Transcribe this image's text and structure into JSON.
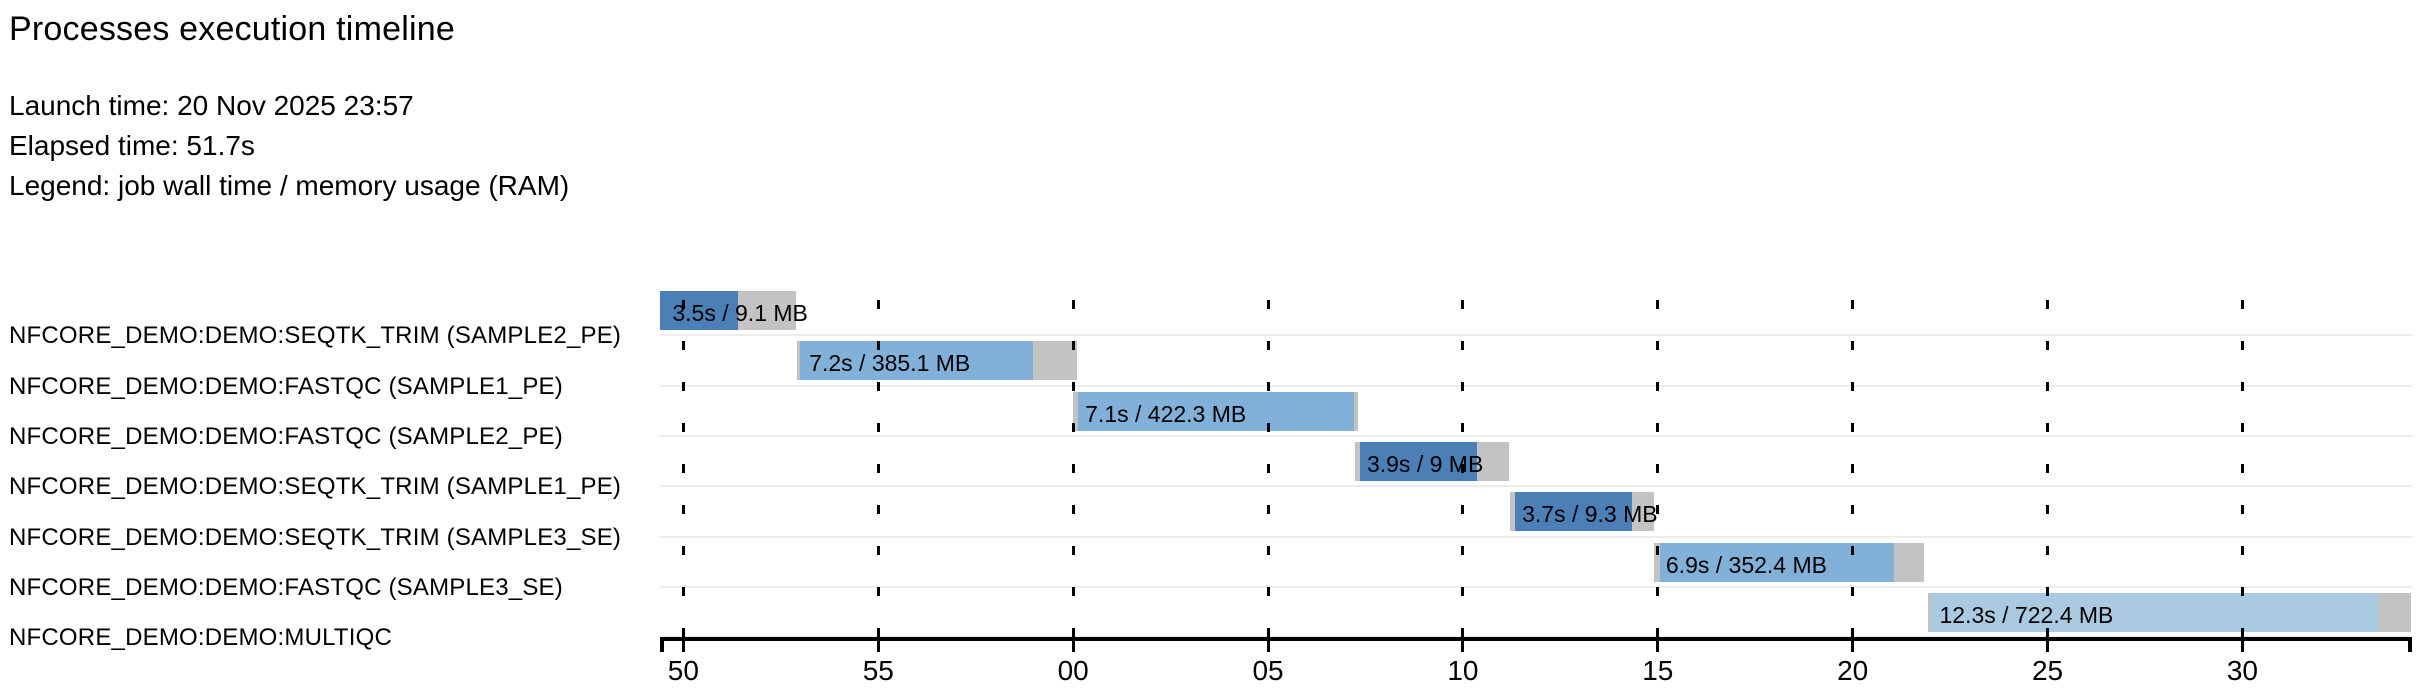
{
  "header": {
    "title": "Processes execution timeline",
    "launch_time": "Launch time: 20 Nov 2025 23:57",
    "elapsed_time": "Elapsed time: 51.7s",
    "legend": "Legend: job wall time / memory usage (RAM)"
  },
  "colors": {
    "seqtk_trim": "#4b7fb6",
    "fastqc": "#81b0d8",
    "multiqc": "#a9cae1",
    "overhead_gray": "#c3c3c3",
    "row_separator": "#ededed",
    "gridline": "#000000",
    "axis": "#000000",
    "text": "#000000"
  },
  "chart_data": {
    "type": "gantt-timeline",
    "title": "Processes execution timeline",
    "time_axis": {
      "unit": "seconds",
      "domain_s": [
        49.4,
        94.35
      ],
      "ticks": [
        {
          "t": 50,
          "label": "50"
        },
        {
          "t": 55,
          "label": "55"
        },
        {
          "t": 60,
          "label": "00"
        },
        {
          "t": 65,
          "label": "05"
        },
        {
          "t": 70,
          "label": "10"
        },
        {
          "t": 75,
          "label": "15"
        },
        {
          "t": 80,
          "label": "20"
        },
        {
          "t": 85,
          "label": "25"
        },
        {
          "t": 90,
          "label": "30"
        }
      ]
    },
    "tasks": [
      {
        "process": "NFCORE_DEMO:DEMO:SEQTK_TRIM (SAMPLE2_PE)",
        "bar_label": "3.5s / 9.1 MB",
        "wall_time_s": 3.5,
        "memory": "9.1 MB",
        "submit": 49.41,
        "run_start": 49.41,
        "run_end": 51.41,
        "complete": 52.9,
        "color_key": "seqtk_trim"
      },
      {
        "process": "NFCORE_DEMO:DEMO:FASTQC (SAMPLE1_PE)",
        "bar_label": "7.2s / 385.1 MB",
        "wall_time_s": 7.2,
        "memory": "385.1 MB",
        "submit": 52.92,
        "run_start": 53.0,
        "run_end": 58.97,
        "complete": 60.1,
        "color_key": "fastqc"
      },
      {
        "process": "NFCORE_DEMO:DEMO:FASTQC (SAMPLE2_PE)",
        "bar_label": "7.1s / 422.3 MB",
        "wall_time_s": 7.1,
        "memory": "422.3 MB",
        "submit": 60.0,
        "run_start": 60.13,
        "run_end": 67.21,
        "complete": 67.3,
        "color_key": "fastqc"
      },
      {
        "process": "NFCORE_DEMO:DEMO:SEQTK_TRIM (SAMPLE1_PE)",
        "bar_label": "3.9s / 9 MB",
        "wall_time_s": 3.9,
        "memory": "9 MB",
        "submit": 67.23,
        "run_start": 67.36,
        "run_end": 70.36,
        "complete": 71.18,
        "color_key": "seqtk_trim"
      },
      {
        "process": "NFCORE_DEMO:DEMO:SEQTK_TRIM (SAMPLE3_SE)",
        "bar_label": "3.7s / 9.3 MB",
        "wall_time_s": 3.7,
        "memory": "9.3 MB",
        "submit": 71.21,
        "run_start": 71.33,
        "run_end": 74.33,
        "complete": 74.9,
        "color_key": "seqtk_trim"
      },
      {
        "process": "NFCORE_DEMO:DEMO:FASTQC (SAMPLE3_SE)",
        "bar_label": "6.9s / 352.4 MB",
        "wall_time_s": 6.9,
        "memory": "352.4 MB",
        "submit": 74.9,
        "run_start": 75.05,
        "run_end": 81.05,
        "complete": 81.82,
        "color_key": "fastqc"
      },
      {
        "process": "NFCORE_DEMO:DEMO:MULTIQC",
        "bar_label": "12.3s / 722.4 MB",
        "wall_time_s": 12.3,
        "memory": "722.4 MB",
        "submit": 81.92,
        "run_start": 82.0,
        "run_end": 93.49,
        "complete": 94.33,
        "color_key": "multiqc"
      }
    ]
  }
}
